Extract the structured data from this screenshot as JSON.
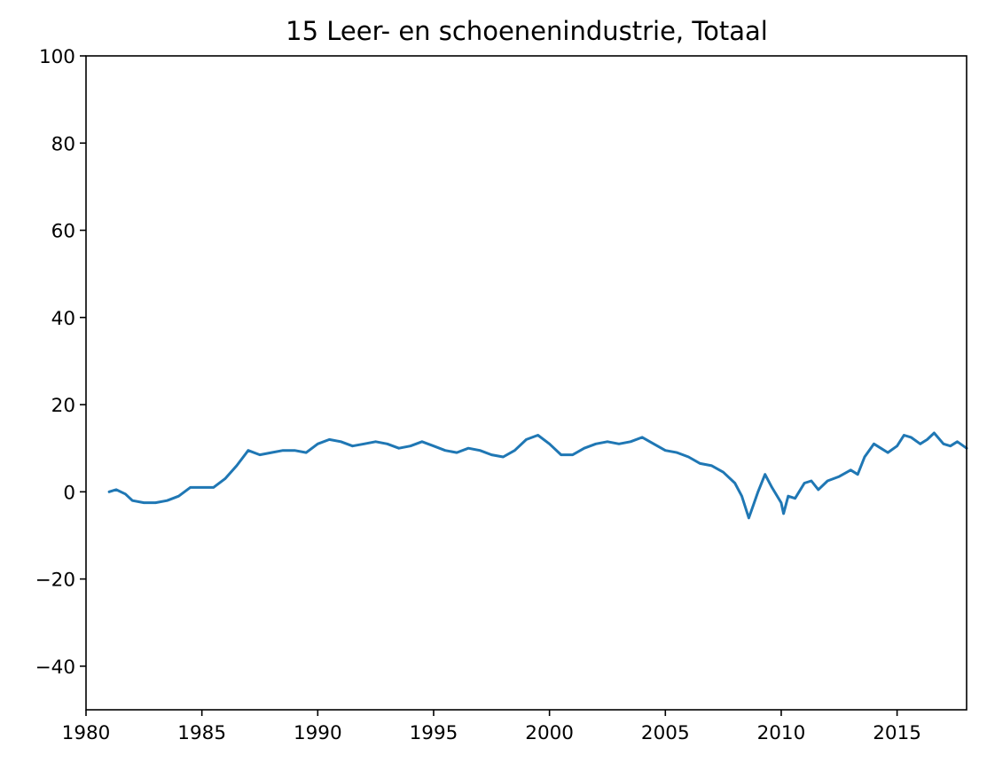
{
  "chart_data": {
    "type": "line",
    "title": "15 Leer- en schoenenindustrie, Totaal",
    "xlabel": "",
    "ylabel": "",
    "xlim": [
      1980,
      2018
    ],
    "ylim": [
      -50,
      100
    ],
    "x_ticks": [
      1980,
      1985,
      1990,
      1995,
      2000,
      2005,
      2010,
      2015
    ],
    "y_ticks": [
      -40,
      -20,
      0,
      20,
      40,
      60,
      80,
      100
    ],
    "y_tick_labels": [
      "−40",
      "−20",
      "0",
      "20",
      "40",
      "60",
      "80",
      "100"
    ],
    "grid": false,
    "legend": "none",
    "series": [
      {
        "color": "#1f77b4",
        "points": [
          [
            1981.0,
            0.0
          ],
          [
            1981.3,
            0.5
          ],
          [
            1981.7,
            -0.5
          ],
          [
            1982.0,
            -2.0
          ],
          [
            1982.5,
            -2.5
          ],
          [
            1983.0,
            -2.5
          ],
          [
            1983.5,
            -2.0
          ],
          [
            1984.0,
            -1.0
          ],
          [
            1984.5,
            1.0
          ],
          [
            1985.0,
            1.0
          ],
          [
            1985.5,
            1.0
          ],
          [
            1986.0,
            3.0
          ],
          [
            1986.5,
            6.0
          ],
          [
            1987.0,
            9.5
          ],
          [
            1987.5,
            8.5
          ],
          [
            1988.0,
            9.0
          ],
          [
            1988.5,
            9.5
          ],
          [
            1989.0,
            9.5
          ],
          [
            1989.5,
            9.0
          ],
          [
            1990.0,
            11.0
          ],
          [
            1990.5,
            12.0
          ],
          [
            1991.0,
            11.5
          ],
          [
            1991.5,
            10.5
          ],
          [
            1992.0,
            11.0
          ],
          [
            1992.5,
            11.5
          ],
          [
            1993.0,
            11.0
          ],
          [
            1993.5,
            10.0
          ],
          [
            1994.0,
            10.5
          ],
          [
            1994.5,
            11.5
          ],
          [
            1995.0,
            10.5
          ],
          [
            1995.5,
            9.5
          ],
          [
            1996.0,
            9.0
          ],
          [
            1996.5,
            10.0
          ],
          [
            1997.0,
            9.5
          ],
          [
            1997.5,
            8.5
          ],
          [
            1998.0,
            8.0
          ],
          [
            1998.5,
            9.5
          ],
          [
            1999.0,
            12.0
          ],
          [
            1999.5,
            13.0
          ],
          [
            2000.0,
            11.0
          ],
          [
            2000.5,
            8.5
          ],
          [
            2001.0,
            8.5
          ],
          [
            2001.5,
            10.0
          ],
          [
            2002.0,
            11.0
          ],
          [
            2002.5,
            11.5
          ],
          [
            2003.0,
            11.0
          ],
          [
            2003.5,
            11.5
          ],
          [
            2004.0,
            12.5
          ],
          [
            2004.5,
            11.0
          ],
          [
            2005.0,
            9.5
          ],
          [
            2005.5,
            9.0
          ],
          [
            2006.0,
            8.0
          ],
          [
            2006.5,
            6.5
          ],
          [
            2007.0,
            6.0
          ],
          [
            2007.5,
            4.5
          ],
          [
            2008.0,
            2.0
          ],
          [
            2008.3,
            -1.0
          ],
          [
            2008.6,
            -6.0
          ],
          [
            2008.8,
            -3.0
          ],
          [
            2009.0,
            0.0
          ],
          [
            2009.3,
            4.0
          ],
          [
            2009.6,
            1.0
          ],
          [
            2010.0,
            -2.5
          ],
          [
            2010.1,
            -5.0
          ],
          [
            2010.3,
            -1.0
          ],
          [
            2010.6,
            -1.5
          ],
          [
            2011.0,
            2.0
          ],
          [
            2011.3,
            2.5
          ],
          [
            2011.6,
            0.5
          ],
          [
            2012.0,
            2.5
          ],
          [
            2012.5,
            3.5
          ],
          [
            2013.0,
            5.0
          ],
          [
            2013.3,
            4.0
          ],
          [
            2013.6,
            8.0
          ],
          [
            2014.0,
            11.0
          ],
          [
            2014.3,
            10.0
          ],
          [
            2014.6,
            9.0
          ],
          [
            2015.0,
            10.5
          ],
          [
            2015.3,
            13.0
          ],
          [
            2015.6,
            12.5
          ],
          [
            2016.0,
            11.0
          ],
          [
            2016.3,
            12.0
          ],
          [
            2016.6,
            13.5
          ],
          [
            2017.0,
            11.0
          ],
          [
            2017.3,
            10.5
          ],
          [
            2017.6,
            11.5
          ],
          [
            2018.0,
            10.0
          ]
        ]
      }
    ]
  }
}
